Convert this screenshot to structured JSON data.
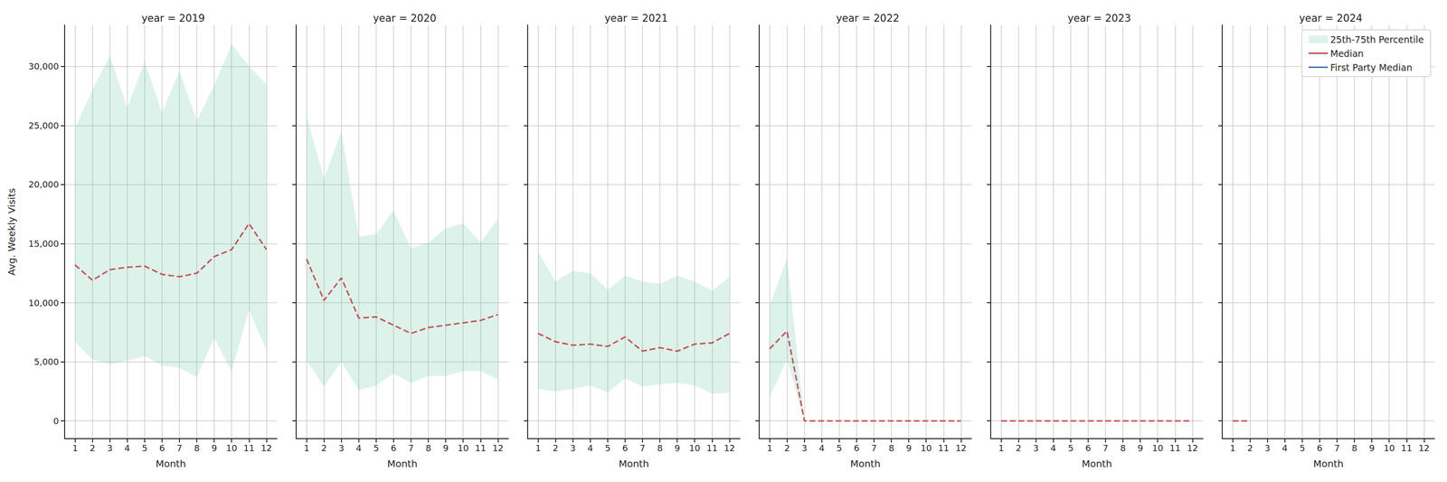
{
  "chart_data": [
    {
      "type": "line",
      "title": "year = 2019",
      "xlabel": "Month",
      "ylabel": "Avg. Weekly Visits",
      "xlim": [
        0.4,
        12.6
      ],
      "xticks": [
        1,
        2,
        3,
        4,
        5,
        6,
        7,
        8,
        9,
        10,
        11,
        12
      ],
      "ylim": [
        -1500,
        33500
      ],
      "yticks": [
        0,
        5000,
        10000,
        15000,
        20000,
        25000,
        30000
      ],
      "grid": true,
      "x": [
        1,
        2,
        3,
        4,
        5,
        6,
        7,
        8,
        9,
        10,
        11,
        12
      ],
      "series": [
        {
          "name": "25th-75th Percentile",
          "type": "band",
          "color": "#66c2a5",
          "lower": [
            6700,
            5200,
            4800,
            5100,
            5500,
            4700,
            4500,
            3700,
            7000,
            4200,
            9400,
            6000
          ],
          "upper": [
            24800,
            28000,
            30900,
            26500,
            30400,
            26100,
            29600,
            25400,
            28400,
            31900,
            30000,
            28500
          ]
        },
        {
          "name": "Median",
          "type": "line",
          "color": "#c44e52",
          "line_style": "dashed",
          "values": [
            13200,
            11900,
            12800,
            13000,
            13100,
            12400,
            12200,
            12500,
            13900,
            14500,
            16700,
            14500
          ]
        },
        {
          "name": "First Party Median",
          "type": "line",
          "color": "#4c72b0",
          "line_style": "dashed",
          "values": [
            null,
            null,
            null,
            null,
            null,
            null,
            null,
            null,
            null,
            null,
            null,
            null
          ]
        }
      ]
    },
    {
      "type": "line",
      "title": "year = 2020",
      "xlabel": "Month",
      "tick_labels": "x",
      "xlim": [
        0.4,
        12.6
      ],
      "xticks": [
        1,
        2,
        3,
        4,
        5,
        6,
        7,
        8,
        9,
        10,
        11,
        12
      ],
      "ylim": [
        -1500,
        33500
      ],
      "yticks": [
        0,
        5000,
        10000,
        15000,
        20000,
        25000,
        30000
      ],
      "grid": true,
      "x": [
        1,
        2,
        3,
        4,
        5,
        6,
        7,
        8,
        9,
        10,
        11,
        12
      ],
      "series": [
        {
          "name": "25th-75th Percentile",
          "type": "band",
          "color": "#66c2a5",
          "lower": [
            5100,
            2900,
            5000,
            2600,
            3000,
            4000,
            3200,
            3800,
            3800,
            4200,
            4200,
            3500
          ],
          "upper": [
            25800,
            20500,
            24500,
            15600,
            15800,
            17800,
            14600,
            15100,
            16300,
            16700,
            15100,
            17100
          ]
        },
        {
          "name": "Median",
          "type": "line",
          "color": "#c44e52",
          "line_style": "dashed",
          "values": [
            13700,
            10200,
            12100,
            8700,
            8800,
            8100,
            7400,
            7900,
            8100,
            8300,
            8500,
            9000
          ]
        },
        {
          "name": "First Party Median",
          "type": "line",
          "color": "#4c72b0",
          "line_style": "dashed",
          "values": [
            null,
            null,
            null,
            null,
            null,
            null,
            null,
            null,
            null,
            null,
            null,
            null
          ]
        }
      ]
    },
    {
      "type": "line",
      "title": "year = 2021",
      "xlabel": "Month",
      "tick_labels": "x",
      "xlim": [
        0.4,
        12.6
      ],
      "xticks": [
        1,
        2,
        3,
        4,
        5,
        6,
        7,
        8,
        9,
        10,
        11,
        12
      ],
      "ylim": [
        -1500,
        33500
      ],
      "yticks": [
        0,
        5000,
        10000,
        15000,
        20000,
        25000,
        30000
      ],
      "grid": true,
      "x": [
        1,
        2,
        3,
        4,
        5,
        6,
        7,
        8,
        9,
        10,
        11,
        12
      ],
      "series": [
        {
          "name": "25th-75th Percentile",
          "type": "band",
          "color": "#66c2a5",
          "lower": [
            2700,
            2500,
            2700,
            3000,
            2400,
            3600,
            2900,
            3100,
            3200,
            3000,
            2300,
            2400
          ],
          "upper": [
            14300,
            11800,
            12700,
            12500,
            11100,
            12300,
            11800,
            11600,
            12300,
            11800,
            11000,
            12200
          ]
        },
        {
          "name": "Median",
          "type": "line",
          "color": "#c44e52",
          "line_style": "dashed",
          "values": [
            7400,
            6700,
            6400,
            6500,
            6300,
            7100,
            5900,
            6200,
            5900,
            6500,
            6600,
            7400
          ]
        },
        {
          "name": "First Party Median",
          "type": "line",
          "color": "#4c72b0",
          "line_style": "dashed",
          "values": [
            null,
            null,
            null,
            null,
            null,
            null,
            null,
            null,
            null,
            null,
            null,
            null
          ]
        }
      ]
    },
    {
      "type": "line",
      "title": "year = 2022",
      "xlabel": "Month",
      "tick_labels": "x",
      "xlim": [
        0.4,
        12.6
      ],
      "xticks": [
        1,
        2,
        3,
        4,
        5,
        6,
        7,
        8,
        9,
        10,
        11,
        12
      ],
      "ylim": [
        -1500,
        33500
      ],
      "yticks": [
        0,
        5000,
        10000,
        15000,
        20000,
        25000,
        30000
      ],
      "grid": true,
      "x": [
        1,
        2,
        3,
        4,
        5,
        6,
        7,
        8,
        9,
        10,
        11,
        12
      ],
      "series": [
        {
          "name": "25th-75th Percentile",
          "type": "band",
          "color": "#66c2a5",
          "lower": [
            2000,
            5200,
            0,
            0,
            0,
            0,
            0,
            0,
            0,
            0,
            0,
            0
          ],
          "upper": [
            9700,
            13800,
            0,
            0,
            0,
            0,
            0,
            0,
            0,
            0,
            0,
            0
          ]
        },
        {
          "name": "Median",
          "type": "line",
          "color": "#c44e52",
          "line_style": "dashed",
          "values": [
            6100,
            7600,
            0,
            0,
            0,
            0,
            0,
            0,
            0,
            0,
            0,
            0
          ]
        },
        {
          "name": "First Party Median",
          "type": "line",
          "color": "#4c72b0",
          "line_style": "dashed",
          "values": [
            null,
            null,
            null,
            null,
            null,
            null,
            null,
            null,
            null,
            null,
            null,
            null
          ]
        }
      ]
    },
    {
      "type": "line",
      "title": "year = 2023",
      "xlabel": "Month",
      "tick_labels": "x",
      "xlim": [
        0.4,
        12.6
      ],
      "xticks": [
        1,
        2,
        3,
        4,
        5,
        6,
        7,
        8,
        9,
        10,
        11,
        12
      ],
      "ylim": [
        -1500,
        33500
      ],
      "yticks": [
        0,
        5000,
        10000,
        15000,
        20000,
        25000,
        30000
      ],
      "grid": true,
      "x": [
        1,
        2,
        3,
        4,
        5,
        6,
        7,
        8,
        9,
        10,
        11,
        12
      ],
      "series": [
        {
          "name": "25th-75th Percentile",
          "type": "band",
          "color": "#66c2a5",
          "lower": [
            0,
            0,
            0,
            0,
            0,
            0,
            0,
            0,
            0,
            0,
            0,
            0
          ],
          "upper": [
            0,
            0,
            0,
            0,
            0,
            0,
            0,
            0,
            0,
            0,
            0,
            0
          ]
        },
        {
          "name": "Median",
          "type": "line",
          "color": "#c44e52",
          "line_style": "dashed",
          "values": [
            0,
            0,
            0,
            0,
            0,
            0,
            0,
            0,
            0,
            0,
            0,
            0
          ]
        },
        {
          "name": "First Party Median",
          "type": "line",
          "color": "#4c72b0",
          "line_style": "dashed",
          "values": [
            null,
            null,
            null,
            null,
            null,
            null,
            null,
            null,
            null,
            null,
            null,
            null
          ]
        }
      ]
    },
    {
      "type": "line",
      "title": "year = 2024",
      "xlabel": "Month",
      "tick_labels": "x",
      "legend": "upper right",
      "xlim": [
        0.4,
        12.6
      ],
      "xticks": [
        1,
        2,
        3,
        4,
        5,
        6,
        7,
        8,
        9,
        10,
        11,
        12
      ],
      "ylim": [
        -1500,
        33500
      ],
      "yticks": [
        0,
        5000,
        10000,
        15000,
        20000,
        25000,
        30000
      ],
      "grid": true,
      "x": [
        1,
        2,
        3,
        4,
        5,
        6,
        7,
        8,
        9,
        10,
        11,
        12
      ],
      "series": [
        {
          "name": "25th-75th Percentile",
          "type": "band",
          "color": "#66c2a5",
          "lower": [
            0,
            0,
            null,
            null,
            null,
            null,
            null,
            null,
            null,
            null,
            null,
            null
          ],
          "upper": [
            0,
            0,
            null,
            null,
            null,
            null,
            null,
            null,
            null,
            null,
            null,
            null
          ]
        },
        {
          "name": "Median",
          "type": "line",
          "color": "#c44e52",
          "line_style": "dashed",
          "values": [
            0,
            0,
            null,
            null,
            null,
            null,
            null,
            null,
            null,
            null,
            null,
            null
          ]
        },
        {
          "name": "First Party Median",
          "type": "line",
          "color": "#4c72b0",
          "line_style": "dashed",
          "values": [
            null,
            null,
            null,
            null,
            null,
            null,
            null,
            null,
            null,
            null,
            null,
            null
          ]
        }
      ]
    }
  ]
}
